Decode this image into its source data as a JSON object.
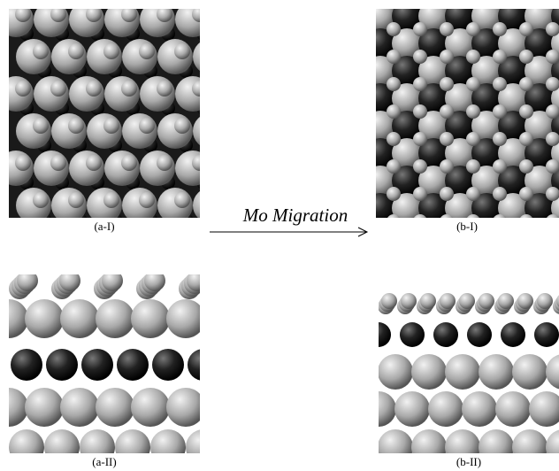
{
  "panels": [
    {
      "label": "(a-I)"
    },
    {
      "label": "(b-I)"
    },
    {
      "label": "(a-II)"
    },
    {
      "label": "(b-II)"
    }
  ],
  "arrow": {
    "label": "Mo Migration"
  }
}
